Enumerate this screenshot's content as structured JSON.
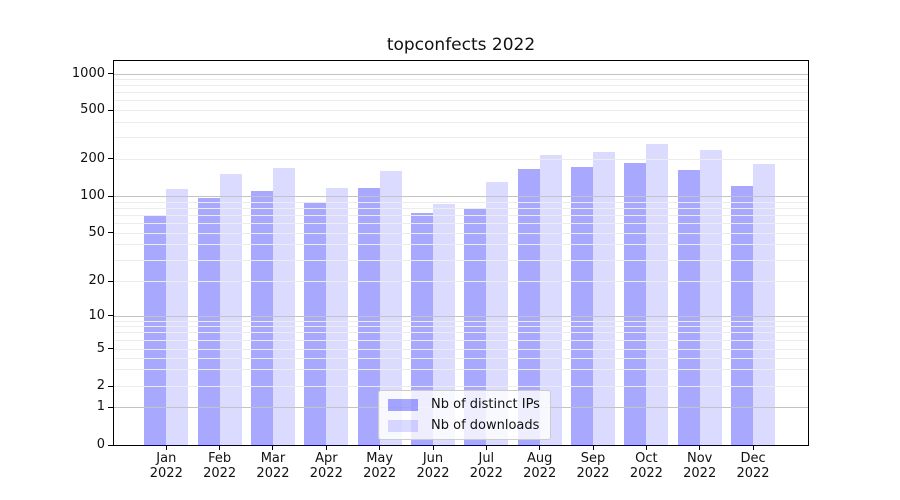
{
  "title": "topconfects 2022",
  "chart_data": {
    "type": "bar",
    "title": "topconfects 2022",
    "categories": [
      "Jan 2022",
      "Feb 2022",
      "Mar 2022",
      "Apr 2022",
      "May 2022",
      "Jun 2022",
      "Jul 2022",
      "Aug 2022",
      "Sep 2022",
      "Oct 2022",
      "Nov 2022",
      "Dec 2022"
    ],
    "x_tick_months": [
      "Jan",
      "Feb",
      "Mar",
      "Apr",
      "May",
      "Jun",
      "Jul",
      "Aug",
      "Sep",
      "Oct",
      "Nov",
      "Dec"
    ],
    "x_tick_year": "2022",
    "series": [
      {
        "name": "Nb of distinct IPs",
        "color": "rgba(0,0,255,0.34)",
        "values": [
          70,
          97,
          109,
          90,
          117,
          73,
          78,
          165,
          172,
          183,
          163,
          120
        ]
      },
      {
        "name": "Nb of downloads",
        "color": "rgba(0,0,255,0.14)",
        "values": [
          114,
          150,
          168,
          115,
          160,
          86,
          129,
          214,
          225,
          264,
          233,
          180
        ]
      }
    ],
    "yscale": "symlog",
    "yticks": [
      0,
      1,
      2,
      5,
      10,
      20,
      50,
      100,
      200,
      500,
      1000
    ],
    "ylim": [
      0,
      1280
    ],
    "grid": "both",
    "legend_position": "lower center"
  },
  "colors": {
    "bar_distinct_ips": "rgba(0,0,255,0.34)",
    "bar_downloads": "rgba(0,0,255,0.14)",
    "major_grid": "#c3c3c3",
    "minor_grid": "#ececec",
    "spine": "#000000",
    "background": "#ffffff"
  }
}
